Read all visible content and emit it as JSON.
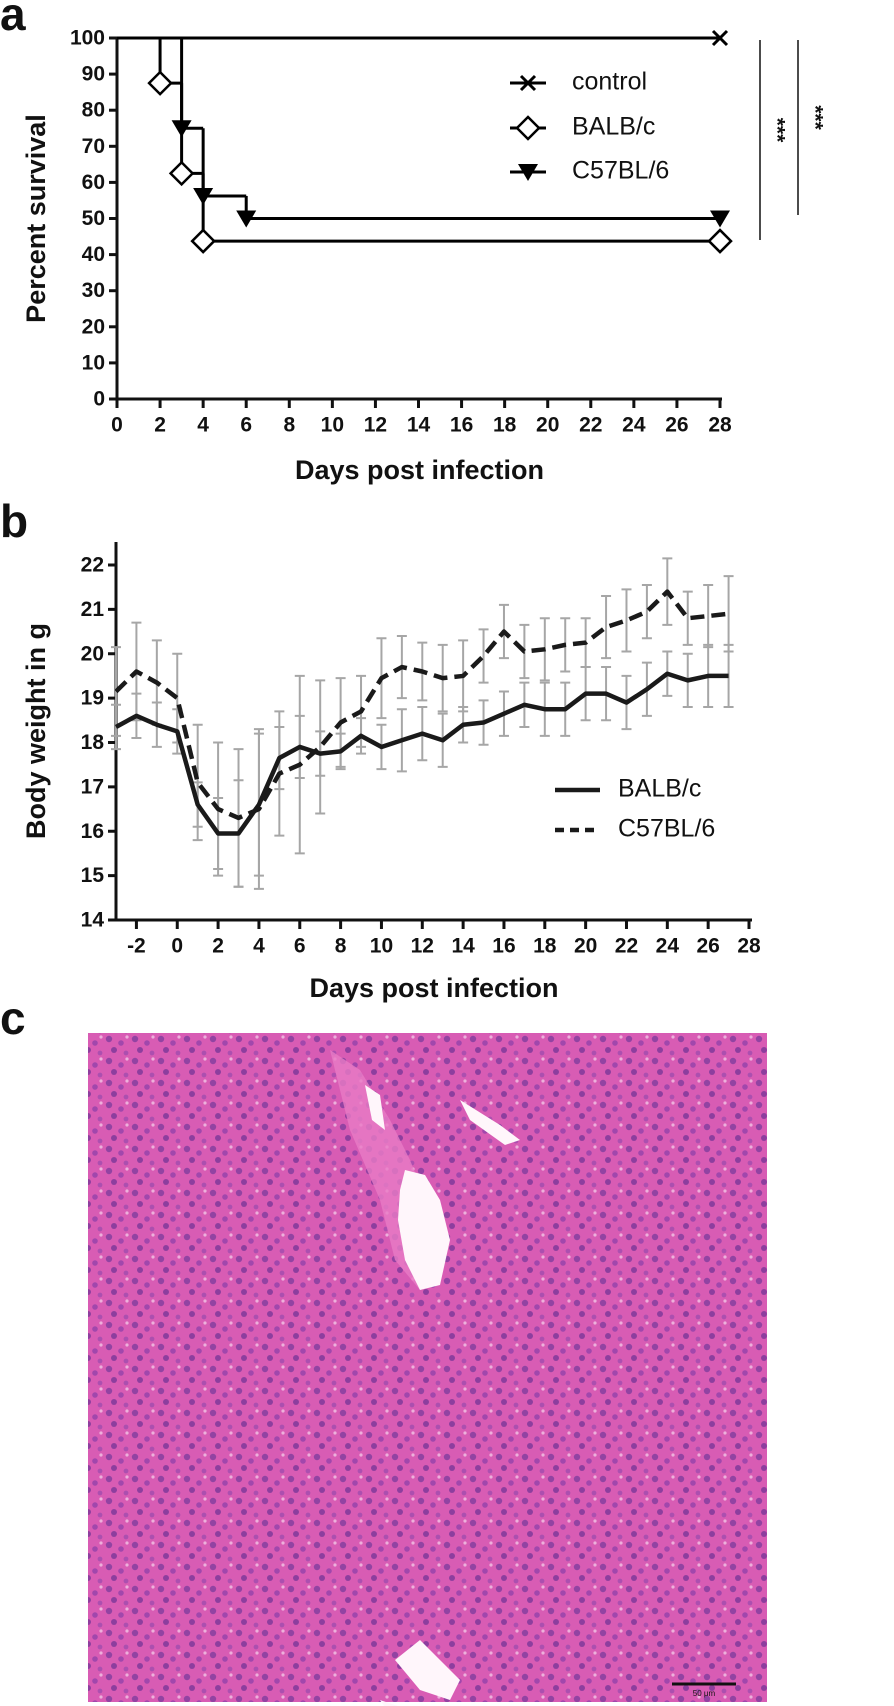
{
  "panel_labels": [
    "a",
    "b",
    "c"
  ],
  "image": {
    "scale_bar": "50 μm"
  },
  "chart_data": [
    {
      "type": "step",
      "xlabel": "Days post infection",
      "ylabel": "Percent survival",
      "xlim": [
        0,
        28
      ],
      "ylim": [
        0,
        100
      ],
      "xticks": [
        0,
        2,
        4,
        6,
        8,
        10,
        12,
        14,
        16,
        18,
        20,
        22,
        24,
        26,
        28
      ],
      "yticks": [
        0,
        10,
        20,
        30,
        40,
        50,
        60,
        70,
        80,
        90,
        100
      ],
      "legend": "upper right",
      "annotations": [
        "***",
        "***"
      ],
      "series": [
        {
          "name": "control",
          "color": "#000000",
          "marker": "x",
          "x": [
            0,
            28
          ],
          "values": [
            100,
            100
          ]
        },
        {
          "name": "BALB/c",
          "color": "#000000",
          "marker": "diamond",
          "x": [
            0,
            2,
            3,
            4,
            28
          ],
          "values": [
            100,
            87.5,
            62.5,
            43.75,
            43.75
          ]
        },
        {
          "name": "C57BL/6",
          "color": "#000000",
          "marker": "triangle-down",
          "x": [
            0,
            3,
            4,
            6,
            28
          ],
          "values": [
            100,
            75,
            56.25,
            50,
            50
          ]
        }
      ]
    },
    {
      "type": "line",
      "xlabel": "Days post infection",
      "ylabel": "Body weight in g",
      "xlim": [
        -3,
        28
      ],
      "ylim": [
        14,
        22.5
      ],
      "xticks": [
        -2,
        0,
        2,
        4,
        6,
        8,
        10,
        12,
        14,
        16,
        18,
        20,
        22,
        24,
        26,
        28
      ],
      "yticks": [
        14,
        15,
        16,
        17,
        18,
        19,
        20,
        21,
        22
      ],
      "legend": "lower right",
      "error_color": "#a6a6a6",
      "x": [
        -3,
        -2,
        -1,
        0,
        1,
        2,
        3,
        4,
        5,
        6,
        7,
        8,
        9,
        10,
        11,
        12,
        13,
        14,
        15,
        16,
        17,
        18,
        19,
        20,
        21,
        22,
        23,
        24,
        25,
        26,
        27
      ],
      "series": [
        {
          "name": "BALB/c",
          "color": "#1a1a1a",
          "linestyle": "solid",
          "values": [
            18.35,
            18.6,
            18.4,
            18.25,
            16.6,
            15.95,
            15.95,
            16.6,
            17.65,
            17.9,
            17.75,
            17.8,
            18.15,
            17.9,
            18.05,
            18.2,
            18.05,
            18.4,
            18.45,
            18.65,
            18.85,
            18.75,
            18.75,
            19.1,
            19.1,
            18.9,
            19.2,
            19.55,
            19.4,
            19.5,
            19.5
          ],
          "errors": [
            0.5,
            0.5,
            0.5,
            0.5,
            0.5,
            0.8,
            1.2,
            1.6,
            0.7,
            0.7,
            0.5,
            0.4,
            0.4,
            0.5,
            0.7,
            0.6,
            0.6,
            0.4,
            0.5,
            0.5,
            0.5,
            0.6,
            0.6,
            0.6,
            0.6,
            0.6,
            0.6,
            0.5,
            0.6,
            0.7,
            0.7
          ]
        },
        {
          "name": "C57BL/6",
          "color": "#1a1a1a",
          "linestyle": "dashed",
          "values": [
            19.15,
            19.6,
            19.35,
            19.0,
            17.1,
            16.5,
            16.3,
            16.5,
            17.3,
            17.5,
            17.9,
            18.45,
            18.7,
            19.45,
            19.7,
            19.6,
            19.45,
            19.5,
            19.95,
            20.5,
            20.05,
            20.1,
            20.2,
            20.25,
            20.6,
            20.75,
            20.95,
            21.4,
            20.8,
            20.85,
            20.9
          ],
          "errors": [
            1.0,
            1.1,
            0.95,
            1.0,
            1.3,
            1.5,
            1.55,
            1.8,
            1.4,
            2.0,
            1.5,
            1.0,
            0.8,
            0.9,
            0.7,
            0.65,
            0.75,
            0.8,
            0.6,
            0.6,
            0.6,
            0.7,
            0.6,
            0.55,
            0.7,
            0.7,
            0.6,
            0.75,
            0.6,
            0.7,
            0.85
          ]
        }
      ]
    }
  ]
}
